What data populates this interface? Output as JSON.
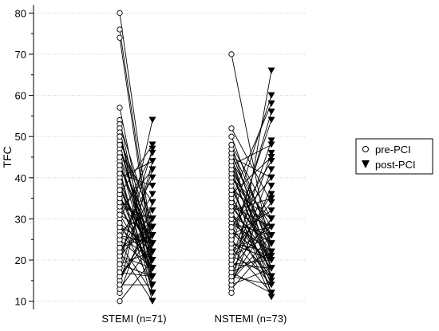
{
  "chart_data": {
    "type": "scatter",
    "subtype": "paired-before-after",
    "ylabel": "TFC",
    "xlabel": "",
    "ylim": [
      8,
      82
    ],
    "yticks": [
      10,
      20,
      30,
      40,
      50,
      60,
      70,
      80
    ],
    "y_ticklabels": [
      "10",
      "20",
      "30",
      "40",
      "50",
      "60",
      "70",
      "80"
    ],
    "grid": "horizontal dotted",
    "legend_position": "right",
    "legend": [
      {
        "label": "pre-PCI",
        "marker": "open-circle"
      },
      {
        "label": "post-PCI",
        "marker": "filled-down-triangle"
      }
    ],
    "groups": [
      {
        "label": "STEMI (n=71)",
        "pairs": [
          [
            80,
            24
          ],
          [
            76,
            22
          ],
          [
            74,
            20
          ],
          [
            57,
            18
          ],
          [
            54,
            16
          ],
          [
            53,
            28
          ],
          [
            52,
            12
          ],
          [
            51,
            14
          ],
          [
            50,
            26
          ],
          [
            49,
            30
          ],
          [
            48,
            20
          ],
          [
            47,
            22
          ],
          [
            46,
            34
          ],
          [
            45,
            18
          ],
          [
            44,
            16
          ],
          [
            43,
            24
          ],
          [
            42,
            12
          ],
          [
            41,
            38
          ],
          [
            40,
            44
          ],
          [
            39,
            10
          ],
          [
            38,
            20
          ],
          [
            37,
            22
          ],
          [
            36,
            48
          ],
          [
            35,
            26
          ],
          [
            34,
            16
          ],
          [
            33,
            30
          ],
          [
            32,
            42
          ],
          [
            31,
            18
          ],
          [
            30,
            46
          ],
          [
            29,
            14
          ],
          [
            28,
            24
          ],
          [
            27,
            32
          ],
          [
            26,
            20
          ],
          [
            25,
            40
          ],
          [
            24,
            12
          ],
          [
            23,
            28
          ],
          [
            22,
            36
          ],
          [
            21,
            18
          ],
          [
            20,
            47
          ],
          [
            19,
            22
          ],
          [
            18,
            54
          ],
          [
            17,
            16
          ],
          [
            16,
            26
          ],
          [
            15,
            30
          ],
          [
            14,
            44
          ],
          [
            10,
            20
          ],
          [
            12,
            34
          ],
          [
            13,
            24
          ],
          [
            14,
            14
          ],
          [
            16,
            28
          ],
          [
            17,
            42
          ],
          [
            19,
            16
          ],
          [
            21,
            30
          ],
          [
            22,
            10
          ],
          [
            23,
            26
          ],
          [
            25,
            18
          ],
          [
            26,
            24
          ],
          [
            28,
            20
          ],
          [
            29,
            22
          ],
          [
            31,
            26
          ],
          [
            33,
            18
          ],
          [
            34,
            28
          ],
          [
            35,
            22
          ],
          [
            36,
            16
          ],
          [
            37,
            24
          ],
          [
            39,
            20
          ],
          [
            41,
            14
          ],
          [
            43,
            22
          ],
          [
            45,
            26
          ],
          [
            48,
            18
          ],
          [
            50,
            22
          ]
        ]
      },
      {
        "label": "NSTEMI (n=73)",
        "pairs": [
          [
            70,
            21
          ],
          [
            52,
            34
          ],
          [
            48,
            30
          ],
          [
            46,
            22
          ],
          [
            45,
            40
          ],
          [
            44,
            18
          ],
          [
            43,
            48
          ],
          [
            42,
            16
          ],
          [
            40,
            26
          ],
          [
            38,
            14
          ],
          [
            37,
            30
          ],
          [
            36,
            12
          ],
          [
            35,
            58
          ],
          [
            34,
            24
          ],
          [
            33,
            20
          ],
          [
            32,
            35
          ],
          [
            31,
            18
          ],
          [
            30,
            60
          ],
          [
            29,
            22
          ],
          [
            28,
            44
          ],
          [
            27,
            16
          ],
          [
            26,
            28
          ],
          [
            25,
            54
          ],
          [
            24,
            20
          ],
          [
            23,
            12
          ],
          [
            22,
            34
          ],
          [
            21,
            26
          ],
          [
            20,
            49
          ],
          [
            19,
            18
          ],
          [
            18,
            46
          ],
          [
            17,
            22
          ],
          [
            16,
            14
          ],
          [
            15,
            30
          ],
          [
            14,
            38
          ],
          [
            13,
            24
          ],
          [
            12,
            66
          ],
          [
            14,
            18
          ],
          [
            15,
            26
          ],
          [
            16,
            42
          ],
          [
            17,
            12
          ],
          [
            18,
            30
          ],
          [
            19,
            20
          ],
          [
            20,
            36
          ],
          [
            21,
            16
          ],
          [
            22,
            28
          ],
          [
            23,
            56
          ],
          [
            24,
            22
          ],
          [
            25,
            14
          ],
          [
            26,
            32
          ],
          [
            27,
            20
          ],
          [
            28,
            40
          ],
          [
            29,
            26
          ],
          [
            30,
            18
          ],
          [
            31,
            24
          ],
          [
            32,
            11
          ],
          [
            33,
            28
          ],
          [
            34,
            16
          ],
          [
            35,
            22
          ],
          [
            36,
            45
          ],
          [
            37,
            20
          ],
          [
            38,
            26
          ],
          [
            39,
            12
          ],
          [
            40,
            30
          ],
          [
            41,
            18
          ],
          [
            42,
            24
          ],
          [
            43,
            20
          ],
          [
            44,
            28
          ],
          [
            45,
            16
          ],
          [
            46,
            22
          ],
          [
            47,
            26
          ],
          [
            48,
            18
          ],
          [
            50,
            24
          ],
          [
            28,
            15
          ]
        ]
      }
    ]
  }
}
